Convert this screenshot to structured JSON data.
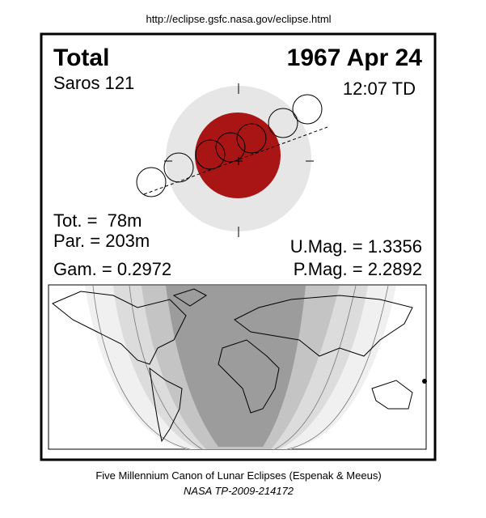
{
  "header": {
    "url": "http://eclipse.gsfc.nasa.gov/eclipse.html"
  },
  "eclipse": {
    "type": "Total",
    "date": "1967 Apr 24",
    "saros": "Saros 121",
    "time": "12:07 TD",
    "totality": "Tot. =  78m",
    "partial": "Par. = 203m",
    "gamma": "Gam. = 0.2972",
    "umbral_magnitude": "U.Mag. = 1.3356",
    "penumbral_magnitude": "P.Mag. = 2.2892"
  },
  "footer": {
    "canon": "Five Millennium Canon of Lunar Eclipses (Espenak & Meeus)",
    "reference": "NASA TP-2009-214172"
  }
}
